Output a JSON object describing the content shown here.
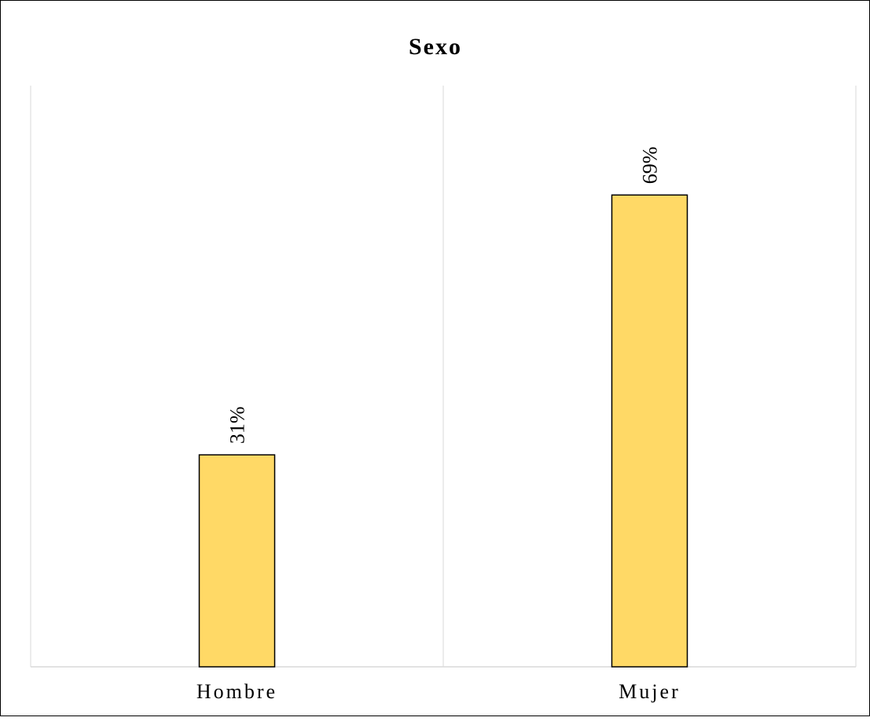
{
  "chart_data": {
    "type": "bar",
    "title": "Sexo",
    "xlabel": "",
    "ylabel": "",
    "categories": [
      "Hombre",
      "Mujer"
    ],
    "values": [
      31,
      69
    ],
    "data_labels": [
      "31%",
      "69%"
    ],
    "value_unit": "%",
    "ylim": [
      0,
      85
    ],
    "colors": {
      "bar_fill": "#FFD966",
      "bar_stroke": "#000000",
      "grid": "#D9D9D9",
      "axis": "#D9D9D9"
    },
    "grid": "vertical category separators",
    "legend": "none"
  }
}
